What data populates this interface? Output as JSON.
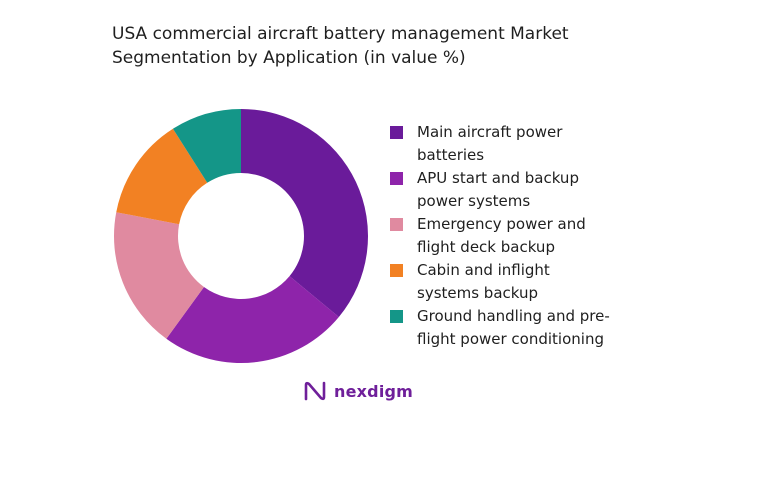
{
  "chart_data": {
    "type": "pie",
    "title": "USA commercial aircraft battery management Market Segmentation by Application (in value %)",
    "title_lines": [
      "USA commercial aircraft battery management Market",
      "Segmentation by Application (in value %)"
    ],
    "donut": true,
    "legend_position": "right",
    "categories": [
      "Main aircraft power batteries",
      "APU start and backup power systems",
      "Emergency power and flight deck backup",
      "Cabin and inflight systems backup",
      "Ground handling and pre-flight power conditioning"
    ],
    "legend_labels": [
      "Main aircraft power\nbatteries",
      "APU start and backup\npower systems",
      "Emergency power and\nflight deck backup",
      "Cabin and inflight\nsystems backup",
      "Ground handling and pre-\nflight power conditioning"
    ],
    "values": [
      36,
      24,
      18,
      13,
      9
    ],
    "colors": [
      "#6a1b9a",
      "#8e24aa",
      "#e08aa0",
      "#f28123",
      "#149688"
    ]
  },
  "brand": {
    "name": "nexdigm",
    "color": "#6f1f9a"
  }
}
